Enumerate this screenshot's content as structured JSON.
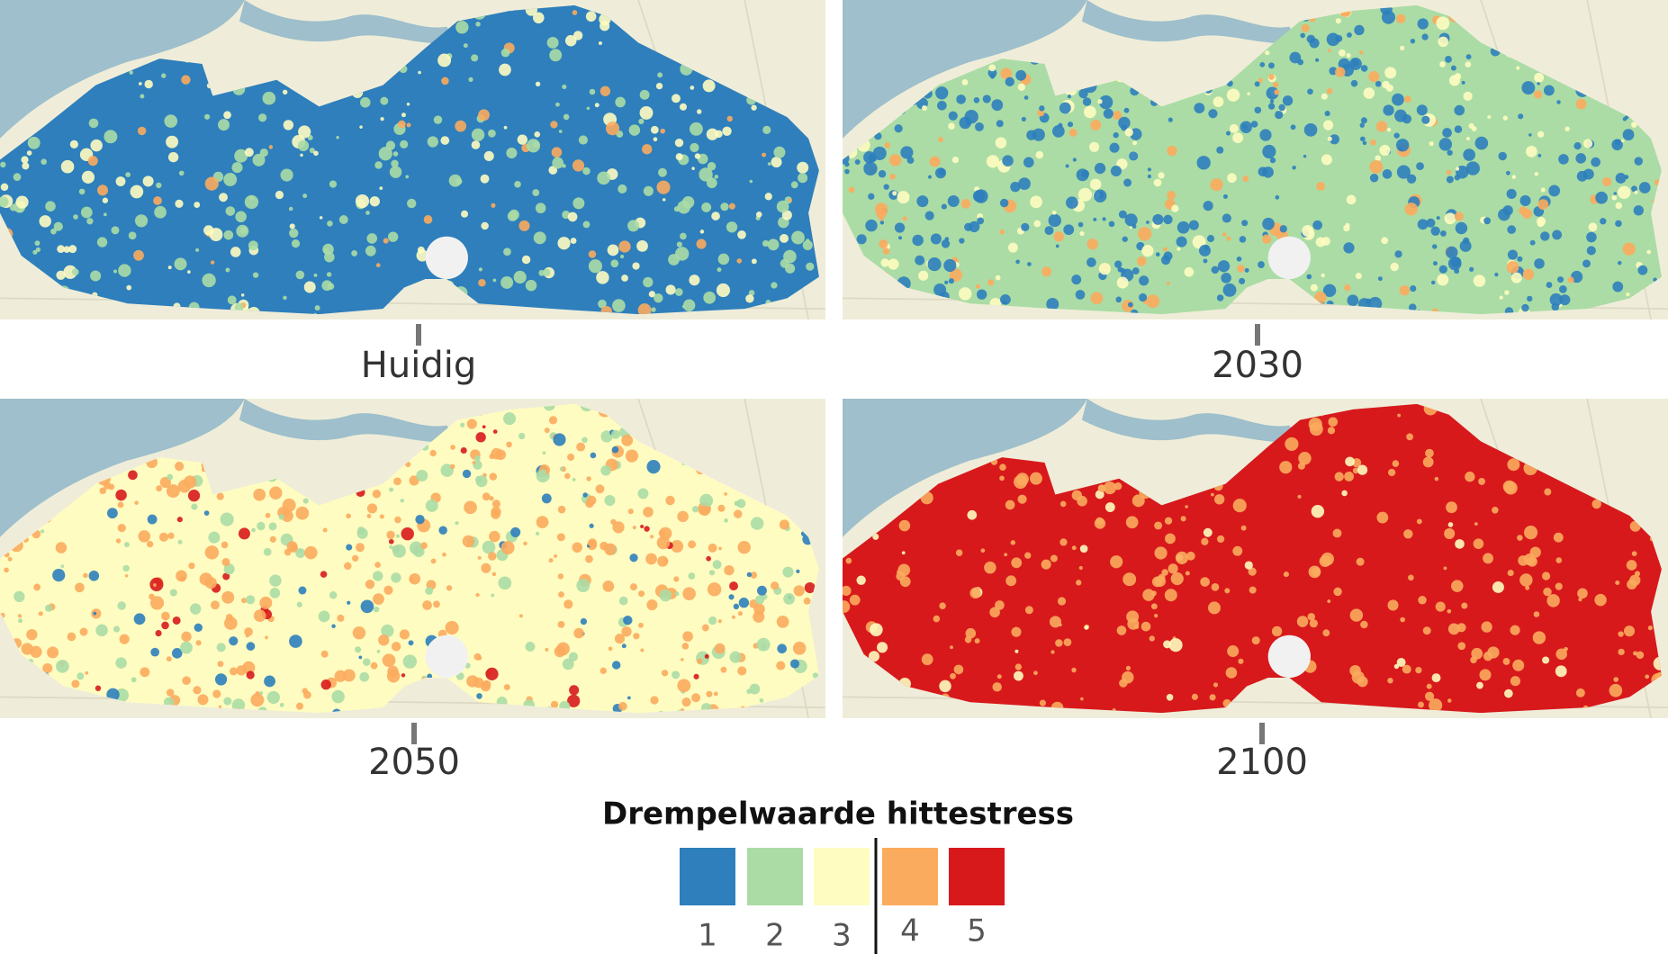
{
  "panels": [
    {
      "label": "Huidig"
    },
    {
      "label": "2030"
    },
    {
      "label": "2050"
    },
    {
      "label": "2100"
    }
  ],
  "legend": {
    "title": "Drempelwaarde hittestress",
    "items": [
      {
        "label": "1",
        "color": "#2e7fbc"
      },
      {
        "label": "2",
        "color": "#abdca5"
      },
      {
        "label": "3",
        "color": "#fefcc0"
      },
      {
        "label": "4",
        "color": "#fbab5e"
      },
      {
        "label": "5",
        "color": "#d7191c"
      }
    ]
  }
}
